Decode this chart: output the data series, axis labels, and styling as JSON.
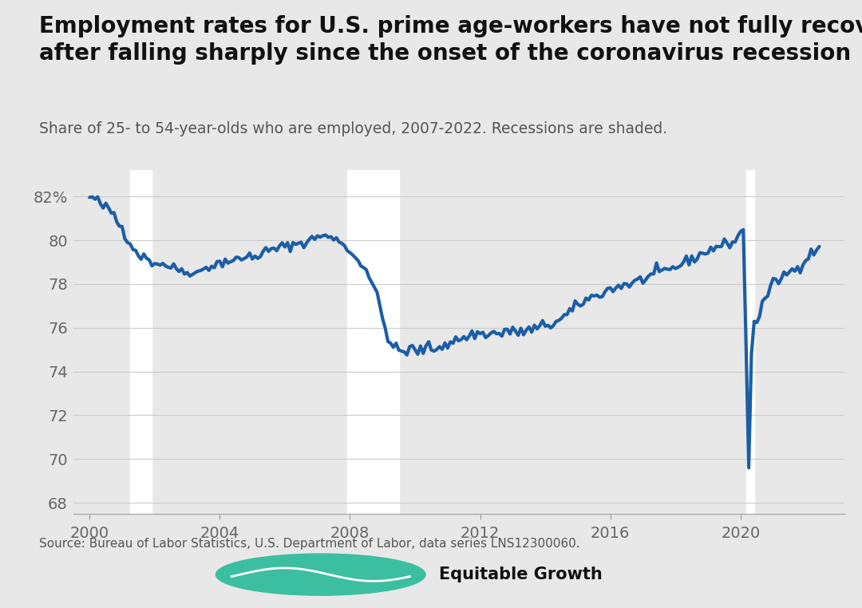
{
  "title": "Employment rates for U.S. prime age-workers have not fully recovered\nafter falling sharply since the onset of the coronavirus recession",
  "subtitle": "Share of 25- to 54-year-olds who are employed, 2007-2022. Recessions are shaded.",
  "source": "Source: Bureau of Labor Statistics, U.S. Department of Labor, data series LNS12300060.",
  "line_color": "#1b5ea6",
  "line_width": 3.0,
  "recession_color": "#ffffff",
  "background_color": "#e8e8e8",
  "plot_background": "#e8e8e8",
  "yticks": [
    68,
    70,
    72,
    74,
    76,
    78,
    80,
    82
  ],
  "ylim": [
    67.5,
    83.2
  ],
  "xticks": [
    2000,
    2004,
    2008,
    2012,
    2016,
    2020
  ],
  "xlim_start": 1999.5,
  "xlim_end": 2023.2,
  "recessions": [
    {
      "start": 2001.25,
      "end": 2001.92
    },
    {
      "start": 2007.92,
      "end": 2009.5
    },
    {
      "start": 2020.17,
      "end": 2020.42
    }
  ],
  "monthly_data": [
    [
      2000.0,
      81.9
    ],
    [
      2000.083,
      82.0
    ],
    [
      2000.167,
      81.8
    ],
    [
      2000.25,
      81.8
    ],
    [
      2000.333,
      81.7
    ],
    [
      2000.417,
      81.5
    ],
    [
      2000.5,
      81.5
    ],
    [
      2000.583,
      81.4
    ],
    [
      2000.667,
      81.3
    ],
    [
      2000.75,
      81.2
    ],
    [
      2000.833,
      80.9
    ],
    [
      2000.917,
      80.7
    ],
    [
      2001.0,
      80.6
    ],
    [
      2001.083,
      80.3
    ],
    [
      2001.167,
      80.1
    ],
    [
      2001.25,
      79.9
    ],
    [
      2001.333,
      79.7
    ],
    [
      2001.417,
      79.5
    ],
    [
      2001.5,
      79.4
    ],
    [
      2001.583,
      79.3
    ],
    [
      2001.667,
      79.2
    ],
    [
      2001.75,
      79.2
    ],
    [
      2001.833,
      79.1
    ],
    [
      2001.917,
      79.0
    ],
    [
      2002.0,
      79.0
    ],
    [
      2002.083,
      78.9
    ],
    [
      2002.167,
      79.0
    ],
    [
      2002.25,
      78.9
    ],
    [
      2002.333,
      78.9
    ],
    [
      2002.417,
      78.8
    ],
    [
      2002.5,
      78.8
    ],
    [
      2002.583,
      78.7
    ],
    [
      2002.667,
      78.7
    ],
    [
      2002.75,
      78.7
    ],
    [
      2002.833,
      78.6
    ],
    [
      2002.917,
      78.6
    ],
    [
      2003.0,
      78.5
    ],
    [
      2003.083,
      78.6
    ],
    [
      2003.167,
      78.6
    ],
    [
      2003.25,
      78.5
    ],
    [
      2003.333,
      78.5
    ],
    [
      2003.417,
      78.6
    ],
    [
      2003.5,
      78.7
    ],
    [
      2003.583,
      78.8
    ],
    [
      2003.667,
      78.8
    ],
    [
      2003.75,
      78.9
    ],
    [
      2003.833,
      78.8
    ],
    [
      2003.917,
      78.9
    ],
    [
      2004.0,
      79.0
    ],
    [
      2004.083,
      79.0
    ],
    [
      2004.167,
      79.1
    ],
    [
      2004.25,
      79.0
    ],
    [
      2004.333,
      79.1
    ],
    [
      2004.417,
      79.0
    ],
    [
      2004.5,
      79.1
    ],
    [
      2004.583,
      79.1
    ],
    [
      2004.667,
      79.2
    ],
    [
      2004.75,
      79.2
    ],
    [
      2004.833,
      79.2
    ],
    [
      2004.917,
      79.3
    ],
    [
      2005.0,
      79.2
    ],
    [
      2005.083,
      79.3
    ],
    [
      2005.167,
      79.3
    ],
    [
      2005.25,
      79.4
    ],
    [
      2005.333,
      79.4
    ],
    [
      2005.417,
      79.5
    ],
    [
      2005.5,
      79.5
    ],
    [
      2005.583,
      79.5
    ],
    [
      2005.667,
      79.6
    ],
    [
      2005.75,
      79.6
    ],
    [
      2005.833,
      79.7
    ],
    [
      2005.917,
      79.7
    ],
    [
      2006.0,
      79.7
    ],
    [
      2006.083,
      79.7
    ],
    [
      2006.167,
      79.8
    ],
    [
      2006.25,
      79.8
    ],
    [
      2006.333,
      79.8
    ],
    [
      2006.417,
      79.9
    ],
    [
      2006.5,
      79.9
    ],
    [
      2006.583,
      79.9
    ],
    [
      2006.667,
      79.9
    ],
    [
      2006.75,
      80.0
    ],
    [
      2006.833,
      80.0
    ],
    [
      2006.917,
      80.1
    ],
    [
      2007.0,
      80.3
    ],
    [
      2007.083,
      80.2
    ],
    [
      2007.167,
      80.1
    ],
    [
      2007.25,
      80.2
    ],
    [
      2007.333,
      80.2
    ],
    [
      2007.417,
      80.1
    ],
    [
      2007.5,
      80.0
    ],
    [
      2007.583,
      80.0
    ],
    [
      2007.667,
      80.0
    ],
    [
      2007.75,
      79.9
    ],
    [
      2007.833,
      79.8
    ],
    [
      2007.917,
      79.7
    ],
    [
      2008.0,
      79.4
    ],
    [
      2008.083,
      79.3
    ],
    [
      2008.167,
      79.2
    ],
    [
      2008.25,
      79.1
    ],
    [
      2008.333,
      79.0
    ],
    [
      2008.417,
      78.8
    ],
    [
      2008.5,
      78.7
    ],
    [
      2008.583,
      78.4
    ],
    [
      2008.667,
      78.1
    ],
    [
      2008.75,
      77.8
    ],
    [
      2008.833,
      77.4
    ],
    [
      2008.917,
      77.0
    ],
    [
      2009.0,
      76.4
    ],
    [
      2009.083,
      76.0
    ],
    [
      2009.167,
      75.6
    ],
    [
      2009.25,
      75.3
    ],
    [
      2009.333,
      75.1
    ],
    [
      2009.417,
      75.0
    ],
    [
      2009.5,
      75.0
    ],
    [
      2009.583,
      74.9
    ],
    [
      2009.667,
      74.9
    ],
    [
      2009.75,
      74.9
    ],
    [
      2009.833,
      75.0
    ],
    [
      2009.917,
      75.1
    ],
    [
      2010.0,
      74.9
    ],
    [
      2010.083,
      74.9
    ],
    [
      2010.167,
      75.0
    ],
    [
      2010.25,
      75.0
    ],
    [
      2010.333,
      75.1
    ],
    [
      2010.417,
      75.1
    ],
    [
      2010.5,
      75.1
    ],
    [
      2010.583,
      75.0
    ],
    [
      2010.667,
      75.0
    ],
    [
      2010.75,
      75.2
    ],
    [
      2010.833,
      75.2
    ],
    [
      2010.917,
      75.3
    ],
    [
      2011.0,
      75.2
    ],
    [
      2011.083,
      75.3
    ],
    [
      2011.167,
      75.4
    ],
    [
      2011.25,
      75.4
    ],
    [
      2011.333,
      75.5
    ],
    [
      2011.417,
      75.5
    ],
    [
      2011.5,
      75.5
    ],
    [
      2011.583,
      75.6
    ],
    [
      2011.667,
      75.6
    ],
    [
      2011.75,
      75.7
    ],
    [
      2011.833,
      75.7
    ],
    [
      2011.917,
      75.8
    ],
    [
      2012.0,
      75.7
    ],
    [
      2012.083,
      75.7
    ],
    [
      2012.167,
      75.7
    ],
    [
      2012.25,
      75.8
    ],
    [
      2012.333,
      75.7
    ],
    [
      2012.417,
      75.8
    ],
    [
      2012.5,
      75.7
    ],
    [
      2012.583,
      75.7
    ],
    [
      2012.667,
      75.7
    ],
    [
      2012.75,
      75.9
    ],
    [
      2012.833,
      75.9
    ],
    [
      2012.917,
      75.8
    ],
    [
      2013.0,
      75.8
    ],
    [
      2013.083,
      75.8
    ],
    [
      2013.167,
      75.8
    ],
    [
      2013.25,
      75.9
    ],
    [
      2013.333,
      75.8
    ],
    [
      2013.417,
      75.8
    ],
    [
      2013.5,
      75.9
    ],
    [
      2013.583,
      75.9
    ],
    [
      2013.667,
      76.0
    ],
    [
      2013.75,
      75.9
    ],
    [
      2013.833,
      76.0
    ],
    [
      2013.917,
      76.1
    ],
    [
      2014.0,
      76.1
    ],
    [
      2014.083,
      76.2
    ],
    [
      2014.167,
      76.1
    ],
    [
      2014.25,
      76.2
    ],
    [
      2014.333,
      76.3
    ],
    [
      2014.417,
      76.3
    ],
    [
      2014.5,
      76.4
    ],
    [
      2014.583,
      76.5
    ],
    [
      2014.667,
      76.6
    ],
    [
      2014.75,
      76.7
    ],
    [
      2014.833,
      76.8
    ],
    [
      2014.917,
      76.9
    ],
    [
      2015.0,
      77.0
    ],
    [
      2015.083,
      77.1
    ],
    [
      2015.167,
      77.2
    ],
    [
      2015.25,
      77.3
    ],
    [
      2015.333,
      77.3
    ],
    [
      2015.417,
      77.4
    ],
    [
      2015.5,
      77.4
    ],
    [
      2015.583,
      77.5
    ],
    [
      2015.667,
      77.5
    ],
    [
      2015.75,
      77.6
    ],
    [
      2015.833,
      77.7
    ],
    [
      2015.917,
      77.7
    ],
    [
      2016.0,
      77.8
    ],
    [
      2016.083,
      77.8
    ],
    [
      2016.167,
      77.8
    ],
    [
      2016.25,
      77.9
    ],
    [
      2016.333,
      77.9
    ],
    [
      2016.417,
      78.0
    ],
    [
      2016.5,
      78.0
    ],
    [
      2016.583,
      78.0
    ],
    [
      2016.667,
      78.0
    ],
    [
      2016.75,
      78.1
    ],
    [
      2016.833,
      78.1
    ],
    [
      2016.917,
      78.2
    ],
    [
      2017.0,
      78.2
    ],
    [
      2017.083,
      78.3
    ],
    [
      2017.167,
      78.3
    ],
    [
      2017.25,
      78.4
    ],
    [
      2017.333,
      78.4
    ],
    [
      2017.417,
      78.5
    ],
    [
      2017.5,
      78.5
    ],
    [
      2017.583,
      78.5
    ],
    [
      2017.667,
      78.6
    ],
    [
      2017.75,
      78.6
    ],
    [
      2017.833,
      78.7
    ],
    [
      2017.917,
      78.7
    ],
    [
      2018.0,
      78.8
    ],
    [
      2018.083,
      78.8
    ],
    [
      2018.167,
      78.9
    ],
    [
      2018.25,
      79.0
    ],
    [
      2018.333,
      79.0
    ],
    [
      2018.417,
      79.1
    ],
    [
      2018.5,
      79.2
    ],
    [
      2018.583,
      79.2
    ],
    [
      2018.667,
      79.2
    ],
    [
      2018.75,
      79.3
    ],
    [
      2018.833,
      79.4
    ],
    [
      2018.917,
      79.5
    ],
    [
      2019.0,
      79.5
    ],
    [
      2019.083,
      79.6
    ],
    [
      2019.167,
      79.6
    ],
    [
      2019.25,
      79.7
    ],
    [
      2019.333,
      79.7
    ],
    [
      2019.417,
      79.8
    ],
    [
      2019.5,
      79.8
    ],
    [
      2019.583,
      79.8
    ],
    [
      2019.667,
      79.9
    ],
    [
      2019.75,
      79.9
    ],
    [
      2019.833,
      80.0
    ],
    [
      2019.917,
      80.1
    ],
    [
      2020.0,
      80.5
    ],
    [
      2020.083,
      80.5
    ],
    [
      2020.167,
      75.3
    ],
    [
      2020.25,
      69.6
    ],
    [
      2020.333,
      74.8
    ],
    [
      2020.417,
      76.3
    ],
    [
      2020.5,
      76.3
    ],
    [
      2020.583,
      76.6
    ],
    [
      2020.667,
      77.0
    ],
    [
      2020.75,
      77.3
    ],
    [
      2020.833,
      77.6
    ],
    [
      2020.917,
      77.8
    ],
    [
      2021.0,
      78.0
    ],
    [
      2021.083,
      78.1
    ],
    [
      2021.167,
      78.2
    ],
    [
      2021.25,
      78.3
    ],
    [
      2021.333,
      78.4
    ],
    [
      2021.417,
      78.5
    ],
    [
      2021.5,
      78.5
    ],
    [
      2021.583,
      78.6
    ],
    [
      2021.667,
      78.7
    ],
    [
      2021.75,
      78.8
    ],
    [
      2021.833,
      78.9
    ],
    [
      2021.917,
      79.0
    ],
    [
      2022.0,
      79.1
    ],
    [
      2022.083,
      79.3
    ],
    [
      2022.167,
      79.4
    ],
    [
      2022.25,
      79.5
    ],
    [
      2022.333,
      79.6
    ],
    [
      2022.417,
      79.7
    ]
  ]
}
